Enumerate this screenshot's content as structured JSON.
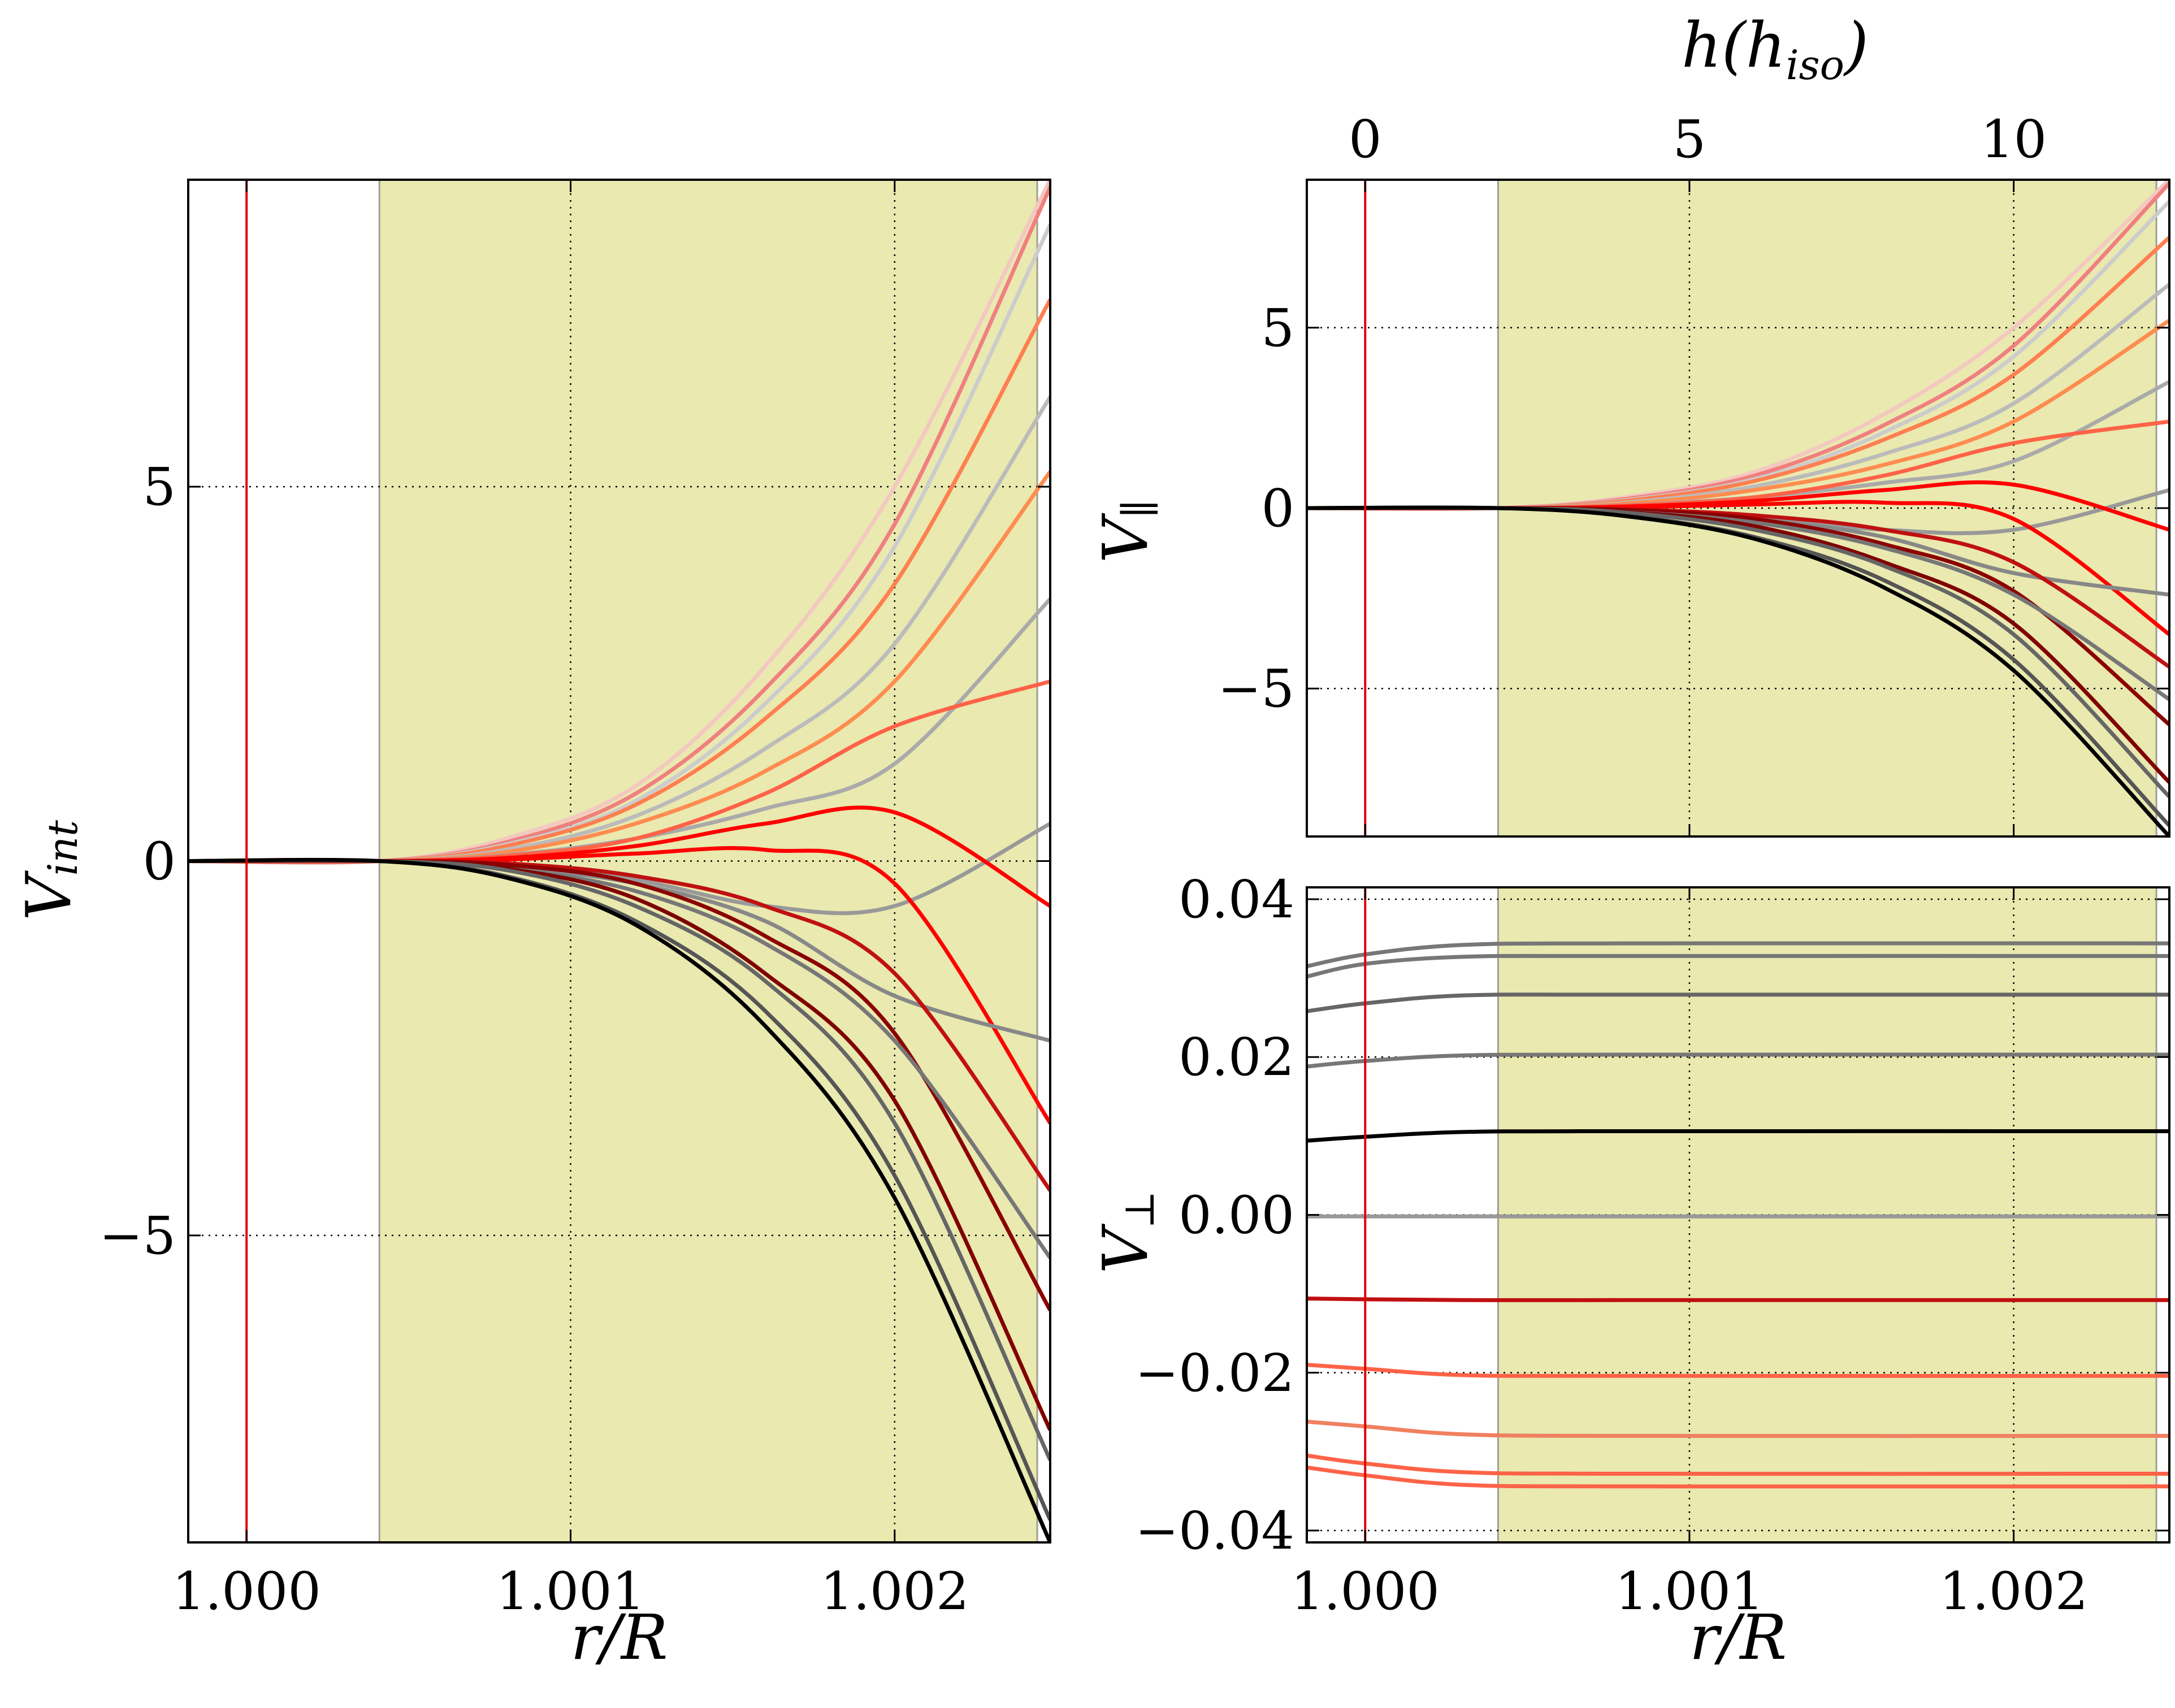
{
  "chart_data": [
    {
      "id": "left",
      "type": "line",
      "ylabel": "V_int",
      "xlabel": "r/R",
      "xlim": [
        0.99982,
        1.00248
      ],
      "ylim": [
        -9.1,
        9.1
      ],
      "xticks": [
        1.0,
        1.001,
        1.002
      ],
      "xtick_labels": [
        "1.000",
        "1.001",
        "1.002"
      ],
      "yticks": [
        -5,
        0,
        5
      ],
      "ytick_labels": [
        "−5",
        "0",
        "5"
      ],
      "grid": true,
      "shaded_region": [
        1.00041,
        1.00244
      ],
      "red_marker_x": 1.0,
      "series": [
        {
          "color": "#f4c8c0",
          "x": [
            0.99982,
            1.00041,
            1.0008,
            1.0012,
            1.0016,
            1.002,
            1.00248
          ],
          "y": [
            0,
            0,
            0.3,
            1.0,
            2.6,
            5.0,
            9.1
          ]
        },
        {
          "color": "#f08080",
          "x": [
            0.99982,
            1.00041,
            1.0008,
            1.0012,
            1.0016,
            1.002,
            1.00248
          ],
          "y": [
            0,
            0,
            0.25,
            0.9,
            2.3,
            4.5,
            9.0
          ]
        },
        {
          "color": "#cccccc",
          "x": [
            0.99982,
            1.00041,
            1.0008,
            1.0012,
            1.0016,
            1.002,
            1.00248
          ],
          "y": [
            0,
            0,
            0.22,
            0.8,
            2.1,
            4.2,
            8.5
          ]
        },
        {
          "color": "#ff7f50",
          "x": [
            0.99982,
            1.00041,
            1.0008,
            1.0012,
            1.0016,
            1.002,
            1.00248
          ],
          "y": [
            0,
            0,
            0.2,
            0.75,
            1.9,
            3.7,
            7.5
          ]
        },
        {
          "color": "#bbbbbb",
          "x": [
            0.99982,
            1.00041,
            1.0008,
            1.0012,
            1.0016,
            1.002,
            1.00248
          ],
          "y": [
            0,
            0,
            0.15,
            0.6,
            1.5,
            2.9,
            6.2
          ]
        },
        {
          "color": "#ff8c50",
          "x": [
            0.99982,
            1.00041,
            1.0008,
            1.0012,
            1.0016,
            1.002,
            1.00248
          ],
          "y": [
            0,
            0,
            0.12,
            0.5,
            1.2,
            2.4,
            5.2
          ]
        },
        {
          "color": "#aaaaaa",
          "x": [
            0.99982,
            1.00041,
            1.0008,
            1.0012,
            1.0016,
            1.002,
            1.00248
          ],
          "y": [
            0,
            0,
            0.08,
            0.3,
            0.7,
            1.3,
            3.5
          ]
        },
        {
          "color": "#ff6347",
          "x": [
            0.99982,
            1.00041,
            1.0008,
            1.0012,
            1.0016,
            1.002,
            1.00248
          ],
          "y": [
            0,
            0,
            0.07,
            0.3,
            0.9,
            1.8,
            2.4
          ]
        },
        {
          "color": "#999999",
          "x": [
            0.99982,
            1.00041,
            1.0008,
            1.0012,
            1.0016,
            1.002,
            1.00248
          ],
          "y": [
            0,
            0,
            -0.05,
            -0.25,
            -0.6,
            -0.6,
            0.5
          ]
        },
        {
          "color": "#ff0000",
          "x": [
            0.99982,
            1.00041,
            1.0008,
            1.0012,
            1.0016,
            1.002,
            1.00248
          ],
          "y": [
            0,
            0,
            0.04,
            0.2,
            0.5,
            0.65,
            -0.6
          ]
        },
        {
          "color": "#ff0000",
          "x": [
            0.99982,
            1.00041,
            1.0008,
            1.0012,
            1.0016,
            1.002,
            1.00248
          ],
          "y": [
            0,
            0,
            0.02,
            0.1,
            0.15,
            -0.3,
            -3.5
          ]
        },
        {
          "color": "#888888",
          "x": [
            0.99982,
            1.00041,
            1.0008,
            1.0012,
            1.0016,
            1.002,
            1.00248
          ],
          "y": [
            0,
            0,
            -0.08,
            -0.3,
            -0.8,
            -1.8,
            -2.4
          ]
        },
        {
          "color": "#c01010",
          "x": [
            0.99982,
            1.00041,
            1.0008,
            1.0012,
            1.0016,
            1.002,
            1.00248
          ],
          "y": [
            0,
            0,
            -0.03,
            -0.2,
            -0.6,
            -1.5,
            -4.4
          ]
        },
        {
          "color": "#8b0000",
          "x": [
            0.99982,
            1.00041,
            1.0008,
            1.0012,
            1.0016,
            1.002,
            1.00248
          ],
          "y": [
            0,
            0,
            -0.05,
            -0.3,
            -1.0,
            -2.3,
            -6.0
          ]
        },
        {
          "color": "#777777",
          "x": [
            0.99982,
            1.00041,
            1.0008,
            1.0012,
            1.0016,
            1.002,
            1.00248
          ],
          "y": [
            0,
            0,
            -0.1,
            -0.4,
            -1.1,
            -2.4,
            -5.3
          ]
        },
        {
          "color": "#800000",
          "x": [
            0.99982,
            1.00041,
            1.0008,
            1.0012,
            1.0016,
            1.002,
            1.00248
          ],
          "y": [
            0,
            0,
            -0.1,
            -0.5,
            -1.5,
            -3.2,
            -7.6
          ]
        },
        {
          "color": "#666666",
          "x": [
            0.99982,
            1.00041,
            1.0008,
            1.0012,
            1.0016,
            1.002,
            1.00248
          ],
          "y": [
            0,
            0,
            -0.12,
            -0.6,
            -1.6,
            -3.5,
            -8.0
          ]
        },
        {
          "color": "#555555",
          "x": [
            0.99982,
            1.00041,
            1.0008,
            1.0012,
            1.0016,
            1.002,
            1.00248
          ],
          "y": [
            0,
            0,
            -0.2,
            -0.8,
            -2.0,
            -4.2,
            -8.8
          ]
        },
        {
          "color": "#000000",
          "x": [
            0.99982,
            1.00041,
            1.0008,
            1.0012,
            1.0016,
            1.002,
            1.00248
          ],
          "y": [
            0,
            0,
            -0.22,
            -0.85,
            -2.2,
            -4.5,
            -9.1
          ]
        }
      ]
    },
    {
      "id": "top-right",
      "type": "line",
      "ylabel": "V_∥",
      "top_xlabel": "h(h_iso)",
      "xlim": [
        0.99982,
        1.00248
      ],
      "ylim": [
        -9.1,
        9.1
      ],
      "xticks": [
        1.0,
        1.001,
        1.002
      ],
      "yticks": [
        -5,
        0,
        5
      ],
      "ytick_labels": [
        "−5",
        "0",
        "5"
      ],
      "top_xticks": [
        0,
        5,
        10
      ],
      "top_xtick_labels": [
        "0",
        "5",
        "10"
      ],
      "top_xtick_positions": [
        1.0,
        1.001,
        1.002
      ],
      "grid": true,
      "shaded_region": [
        1.00041,
        1.00244
      ],
      "red_marker_x": 1.0,
      "series": [
        {
          "color": "#f4c8c0",
          "x": [
            0.99982,
            1.00041,
            1.0008,
            1.0012,
            1.0016,
            1.002,
            1.00248
          ],
          "y": [
            0,
            0,
            0.3,
            1.0,
            2.6,
            5.0,
            9.1
          ]
        },
        {
          "color": "#f08080",
          "x": [
            0.99982,
            1.00041,
            1.0008,
            1.0012,
            1.0016,
            1.002,
            1.00248
          ],
          "y": [
            0,
            0,
            0.25,
            0.9,
            2.3,
            4.5,
            9.0
          ]
        },
        {
          "color": "#cccccc",
          "x": [
            0.99982,
            1.00041,
            1.0008,
            1.0012,
            1.0016,
            1.002,
            1.00248
          ],
          "y": [
            0,
            0,
            0.22,
            0.8,
            2.1,
            4.2,
            8.5
          ]
        },
        {
          "color": "#ff7f50",
          "x": [
            0.99982,
            1.00041,
            1.0008,
            1.0012,
            1.0016,
            1.002,
            1.00248
          ],
          "y": [
            0,
            0,
            0.2,
            0.75,
            1.9,
            3.7,
            7.5
          ]
        },
        {
          "color": "#bbbbbb",
          "x": [
            0.99982,
            1.00041,
            1.0008,
            1.0012,
            1.0016,
            1.002,
            1.00248
          ],
          "y": [
            0,
            0,
            0.15,
            0.6,
            1.5,
            2.9,
            6.2
          ]
        },
        {
          "color": "#ff8c50",
          "x": [
            0.99982,
            1.00041,
            1.0008,
            1.0012,
            1.0016,
            1.002,
            1.00248
          ],
          "y": [
            0,
            0,
            0.12,
            0.5,
            1.2,
            2.4,
            5.2
          ]
        },
        {
          "color": "#aaaaaa",
          "x": [
            0.99982,
            1.00041,
            1.0008,
            1.0012,
            1.0016,
            1.002,
            1.00248
          ],
          "y": [
            0,
            0,
            0.08,
            0.3,
            0.7,
            1.3,
            3.5
          ]
        },
        {
          "color": "#ff6347",
          "x": [
            0.99982,
            1.00041,
            1.0008,
            1.0012,
            1.0016,
            1.002,
            1.00248
          ],
          "y": [
            0,
            0,
            0.07,
            0.3,
            0.9,
            1.8,
            2.4
          ]
        },
        {
          "color": "#999999",
          "x": [
            0.99982,
            1.00041,
            1.0008,
            1.0012,
            1.0016,
            1.002,
            1.00248
          ],
          "y": [
            0,
            0,
            -0.05,
            -0.25,
            -0.6,
            -0.6,
            0.5
          ]
        },
        {
          "color": "#ff0000",
          "x": [
            0.99982,
            1.00041,
            1.0008,
            1.0012,
            1.0016,
            1.002,
            1.00248
          ],
          "y": [
            0,
            0,
            0.04,
            0.2,
            0.5,
            0.65,
            -0.6
          ]
        },
        {
          "color": "#ff0000",
          "x": [
            0.99982,
            1.00041,
            1.0008,
            1.0012,
            1.0016,
            1.002,
            1.00248
          ],
          "y": [
            0,
            0,
            0.02,
            0.1,
            0.15,
            -0.3,
            -3.5
          ]
        },
        {
          "color": "#888888",
          "x": [
            0.99982,
            1.00041,
            1.0008,
            1.0012,
            1.0016,
            1.002,
            1.00248
          ],
          "y": [
            0,
            0,
            -0.08,
            -0.3,
            -0.8,
            -1.8,
            -2.4
          ]
        },
        {
          "color": "#c01010",
          "x": [
            0.99982,
            1.00041,
            1.0008,
            1.0012,
            1.0016,
            1.002,
            1.00248
          ],
          "y": [
            0,
            0,
            -0.03,
            -0.2,
            -0.6,
            -1.5,
            -4.4
          ]
        },
        {
          "color": "#8b0000",
          "x": [
            0.99982,
            1.00041,
            1.0008,
            1.0012,
            1.0016,
            1.002,
            1.00248
          ],
          "y": [
            0,
            0,
            -0.05,
            -0.3,
            -1.0,
            -2.3,
            -6.0
          ]
        },
        {
          "color": "#777777",
          "x": [
            0.99982,
            1.00041,
            1.0008,
            1.0012,
            1.0016,
            1.002,
            1.00248
          ],
          "y": [
            0,
            0,
            -0.1,
            -0.4,
            -1.1,
            -2.4,
            -5.3
          ]
        },
        {
          "color": "#800000",
          "x": [
            0.99982,
            1.00041,
            1.0008,
            1.0012,
            1.0016,
            1.002,
            1.00248
          ],
          "y": [
            0,
            0,
            -0.1,
            -0.5,
            -1.5,
            -3.2,
            -7.6
          ]
        },
        {
          "color": "#666666",
          "x": [
            0.99982,
            1.00041,
            1.0008,
            1.0012,
            1.0016,
            1.002,
            1.00248
          ],
          "y": [
            0,
            0,
            -0.12,
            -0.6,
            -1.6,
            -3.5,
            -8.0
          ]
        },
        {
          "color": "#555555",
          "x": [
            0.99982,
            1.00041,
            1.0008,
            1.0012,
            1.0016,
            1.002,
            1.00248
          ],
          "y": [
            0,
            0,
            -0.2,
            -0.8,
            -2.0,
            -4.2,
            -8.8
          ]
        },
        {
          "color": "#000000",
          "x": [
            0.99982,
            1.00041,
            1.0008,
            1.0012,
            1.0016,
            1.002,
            1.00248
          ],
          "y": [
            0,
            0,
            -0.22,
            -0.85,
            -2.2,
            -4.5,
            -9.1
          ]
        }
      ]
    },
    {
      "id": "bottom-right",
      "type": "line",
      "ylabel": "V_⊥",
      "xlabel": "r/R",
      "xlim": [
        0.99982,
        1.00248
      ],
      "ylim": [
        -0.0415,
        0.0415
      ],
      "xticks": [
        1.0,
        1.001,
        1.002
      ],
      "xtick_labels": [
        "1.000",
        "1.001",
        "1.002"
      ],
      "yticks": [
        -0.04,
        -0.02,
        0.0,
        0.02,
        0.04
      ],
      "ytick_labels": [
        "−0.04",
        "−0.02",
        "0.00",
        "0.02",
        "0.04"
      ],
      "grid": true,
      "shaded_region": [
        1.00041,
        1.00244
      ],
      "red_marker_x": 1.0,
      "series": [
        {
          "color": "#777777",
          "x": [
            0.99982,
            1.0,
            1.0003,
            1.0008,
            1.00248
          ],
          "y": [
            0.0315,
            0.033,
            0.0342,
            0.0344,
            0.0344
          ]
        },
        {
          "color": "#777777",
          "x": [
            0.99982,
            1.0,
            1.0003,
            1.0008,
            1.00248
          ],
          "y": [
            0.0302,
            0.0318,
            0.0327,
            0.0328,
            0.0328
          ]
        },
        {
          "color": "#666666",
          "x": [
            0.99982,
            1.0,
            1.0003,
            1.0008,
            1.00248
          ],
          "y": [
            0.0258,
            0.0268,
            0.0278,
            0.0279,
            0.0279
          ]
        },
        {
          "color": "#777777",
          "x": [
            0.99982,
            1.0,
            1.0003,
            1.0008,
            1.00248
          ],
          "y": [
            0.0188,
            0.0195,
            0.0202,
            0.0203,
            0.0203
          ]
        },
        {
          "color": "#000000",
          "x": [
            0.99982,
            1.0,
            1.0003,
            1.0008,
            1.00248
          ],
          "y": [
            0.0094,
            0.0099,
            0.0105,
            0.0106,
            0.0106
          ]
        },
        {
          "color": "#999999",
          "x": [
            0.99982,
            1.0,
            1.0003,
            1.0008,
            1.00248
          ],
          "y": [
            -0.0002,
            -0.0002,
            -0.0002,
            -0.0002,
            -0.0002
          ]
        },
        {
          "color": "#c01010",
          "x": [
            0.99982,
            1.0,
            1.0003,
            1.0008,
            1.00248
          ],
          "y": [
            -0.0106,
            -0.0107,
            -0.0108,
            -0.0108,
            -0.0108
          ]
        },
        {
          "color": "#ff6347",
          "x": [
            0.99982,
            1.0,
            1.0003,
            1.0008,
            1.00248
          ],
          "y": [
            -0.019,
            -0.0195,
            -0.0203,
            -0.0204,
            -0.0204
          ]
        },
        {
          "color": "#f08060",
          "x": [
            0.99982,
            1.0,
            1.0003,
            1.0008,
            1.00248
          ],
          "y": [
            -0.0262,
            -0.0268,
            -0.0278,
            -0.028,
            -0.028
          ]
        },
        {
          "color": "#ff6347",
          "x": [
            0.99982,
            1.0,
            1.0003,
            1.0008,
            1.00248
          ],
          "y": [
            -0.0305,
            -0.0315,
            -0.0326,
            -0.0328,
            -0.0328
          ]
        },
        {
          "color": "#ff6347",
          "x": [
            0.99982,
            1.0,
            1.0003,
            1.0008,
            1.00248
          ],
          "y": [
            -0.032,
            -0.033,
            -0.0342,
            -0.0344,
            -0.0344
          ]
        }
      ]
    }
  ]
}
